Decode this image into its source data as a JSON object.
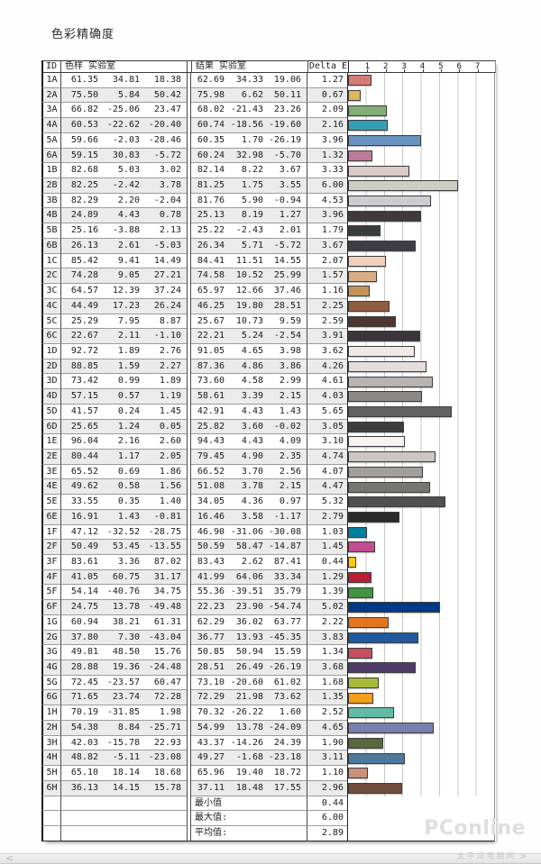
{
  "title": "色彩精确度",
  "table": {
    "headers": {
      "id": "ID",
      "sample": "色样 实验室",
      "result": "结果 实验室",
      "delta_e": "Delta E"
    },
    "scale_ticks": [
      "1",
      "2",
      "3",
      "4",
      "5",
      "6",
      "7"
    ],
    "rows": [
      {
        "id": "1A",
        "sample": [
          "61.35",
          "34.81",
          "18.38"
        ],
        "result": [
          "62.69",
          "34.33",
          "19.06"
        ],
        "de": "1.27"
      },
      {
        "id": "2A",
        "sample": [
          "75.50",
          "5.84",
          "50.42"
        ],
        "result": [
          "75.98",
          "6.62",
          "50.11"
        ],
        "de": "0.67"
      },
      {
        "id": "3A",
        "sample": [
          "66.82",
          "-25.06",
          "23.47"
        ],
        "result": [
          "68.02",
          "-21.43",
          "23.26"
        ],
        "de": "2.09"
      },
      {
        "id": "4A",
        "sample": [
          "60.53",
          "-22.62",
          "-20.40"
        ],
        "result": [
          "60.74",
          "-18.56",
          "-19.60"
        ],
        "de": "2.16"
      },
      {
        "id": "5A",
        "sample": [
          "59.66",
          "-2.03",
          "-28.46"
        ],
        "result": [
          "60.35",
          "1.70",
          "-26.19"
        ],
        "de": "3.96"
      },
      {
        "id": "6A",
        "sample": [
          "59.15",
          "30.83",
          "-5.72"
        ],
        "result": [
          "60.24",
          "32.98",
          "-5.70"
        ],
        "de": "1.32"
      },
      {
        "id": "1B",
        "sample": [
          "82.68",
          "5.03",
          "3.02"
        ],
        "result": [
          "82.14",
          "8.22",
          "3.67"
        ],
        "de": "3.33"
      },
      {
        "id": "2B",
        "sample": [
          "82.25",
          "-2.42",
          "3.78"
        ],
        "result": [
          "81.25",
          "1.75",
          "3.55"
        ],
        "de": "6.00"
      },
      {
        "id": "3B",
        "sample": [
          "82.29",
          "2.20",
          "-2.04"
        ],
        "result": [
          "81.76",
          "5.90",
          "-0.94"
        ],
        "de": "4.53"
      },
      {
        "id": "4B",
        "sample": [
          "24.89",
          "4.43",
          "0.78"
        ],
        "result": [
          "25.13",
          "8.19",
          "1.27"
        ],
        "de": "3.96"
      },
      {
        "id": "5B",
        "sample": [
          "25.16",
          "-3.88",
          "2.13"
        ],
        "result": [
          "25.22",
          "-2.43",
          "2.01"
        ],
        "de": "1.79"
      },
      {
        "id": "6B",
        "sample": [
          "26.13",
          "2.61",
          "-5.03"
        ],
        "result": [
          "26.34",
          "5.71",
          "-5.72"
        ],
        "de": "3.67"
      },
      {
        "id": "1C",
        "sample": [
          "85.42",
          "9.41",
          "14.49"
        ],
        "result": [
          "84.41",
          "11.51",
          "14.55"
        ],
        "de": "2.07"
      },
      {
        "id": "2C",
        "sample": [
          "74.28",
          "9.05",
          "27.21"
        ],
        "result": [
          "74.58",
          "10.52",
          "25.99"
        ],
        "de": "1.57"
      },
      {
        "id": "3C",
        "sample": [
          "64.57",
          "12.39",
          "37.24"
        ],
        "result": [
          "65.97",
          "12.66",
          "37.46"
        ],
        "de": "1.16"
      },
      {
        "id": "4C",
        "sample": [
          "44.49",
          "17.23",
          "26.24"
        ],
        "result": [
          "46.25",
          "19.80",
          "28.51"
        ],
        "de": "2.25"
      },
      {
        "id": "5C",
        "sample": [
          "25.29",
          "7.95",
          "8.87"
        ],
        "result": [
          "25.67",
          "10.73",
          "9.59"
        ],
        "de": "2.59"
      },
      {
        "id": "6C",
        "sample": [
          "22.67",
          "2.11",
          "-1.10"
        ],
        "result": [
          "22.21",
          "5.24",
          "-2.54"
        ],
        "de": "3.91"
      },
      {
        "id": "1D",
        "sample": [
          "92.72",
          "1.89",
          "2.76"
        ],
        "result": [
          "91.05",
          "4.65",
          "3.98"
        ],
        "de": "3.62"
      },
      {
        "id": "2D",
        "sample": [
          "88.85",
          "1.59",
          "2.27"
        ],
        "result": [
          "87.36",
          "4.86",
          "3.86"
        ],
        "de": "4.26"
      },
      {
        "id": "3D",
        "sample": [
          "73.42",
          "0.99",
          "1.89"
        ],
        "result": [
          "73.60",
          "4.58",
          "2.99"
        ],
        "de": "4.61"
      },
      {
        "id": "4D",
        "sample": [
          "57.15",
          "0.57",
          "1.19"
        ],
        "result": [
          "58.61",
          "3.39",
          "2.15"
        ],
        "de": "4.03"
      },
      {
        "id": "5D",
        "sample": [
          "41.57",
          "0.24",
          "1.45"
        ],
        "result": [
          "42.91",
          "4.43",
          "1.43"
        ],
        "de": "5.65"
      },
      {
        "id": "6D",
        "sample": [
          "25.65",
          "1.24",
          "0.05"
        ],
        "result": [
          "25.82",
          "3.60",
          "-0.02"
        ],
        "de": "3.05"
      },
      {
        "id": "1E",
        "sample": [
          "96.04",
          "2.16",
          "2.60"
        ],
        "result": [
          "94.43",
          "4.43",
          "4.09"
        ],
        "de": "3.10"
      },
      {
        "id": "2E",
        "sample": [
          "80.44",
          "1.17",
          "2.05"
        ],
        "result": [
          "79.45",
          "4.90",
          "2.35"
        ],
        "de": "4.74"
      },
      {
        "id": "3E",
        "sample": [
          "65.52",
          "0.69",
          "1.86"
        ],
        "result": [
          "66.52",
          "3.70",
          "2.56"
        ],
        "de": "4.07"
      },
      {
        "id": "4E",
        "sample": [
          "49.62",
          "0.58",
          "1.56"
        ],
        "result": [
          "51.08",
          "3.78",
          "2.15"
        ],
        "de": "4.47"
      },
      {
        "id": "5E",
        "sample": [
          "33.55",
          "0.35",
          "1.40"
        ],
        "result": [
          "34.05",
          "4.36",
          "0.97"
        ],
        "de": "5.32"
      },
      {
        "id": "6E",
        "sample": [
          "16.91",
          "1.43",
          "-0.81"
        ],
        "result": [
          "16.46",
          "3.58",
          "-1.17"
        ],
        "de": "2.79"
      },
      {
        "id": "1F",
        "sample": [
          "47.12",
          "-32.52",
          "-28.75"
        ],
        "result": [
          "46.90",
          "-31.06",
          "-30.08"
        ],
        "de": "1.03"
      },
      {
        "id": "2F",
        "sample": [
          "50.49",
          "53.45",
          "-13.55"
        ],
        "result": [
          "50.59",
          "58.47",
          "-14.87"
        ],
        "de": "1.45"
      },
      {
        "id": "3F",
        "sample": [
          "83.61",
          "3.36",
          "87.02"
        ],
        "result": [
          "83.43",
          "2.62",
          "87.41"
        ],
        "de": "0.44"
      },
      {
        "id": "4F",
        "sample": [
          "41.05",
          "60.75",
          "31.17"
        ],
        "result": [
          "41.99",
          "64.06",
          "33.34"
        ],
        "de": "1.29"
      },
      {
        "id": "5F",
        "sample": [
          "54.14",
          "-40.76",
          "34.75"
        ],
        "result": [
          "55.36",
          "-39.51",
          "35.79"
        ],
        "de": "1.39"
      },
      {
        "id": "6F",
        "sample": [
          "24.75",
          "13.78",
          "-49.48"
        ],
        "result": [
          "22.23",
          "23.90",
          "-54.74"
        ],
        "de": "5.02"
      },
      {
        "id": "1G",
        "sample": [
          "60.94",
          "38.21",
          "61.31"
        ],
        "result": [
          "62.29",
          "36.02",
          "63.77"
        ],
        "de": "2.22"
      },
      {
        "id": "2G",
        "sample": [
          "37.80",
          "7.30",
          "-43.04"
        ],
        "result": [
          "36.77",
          "13.93",
          "-45.35"
        ],
        "de": "3.83"
      },
      {
        "id": "3G",
        "sample": [
          "49.81",
          "48.50",
          "15.76"
        ],
        "result": [
          "50.85",
          "50.94",
          "15.59"
        ],
        "de": "1.34"
      },
      {
        "id": "4G",
        "sample": [
          "28.88",
          "19.36",
          "-24.48"
        ],
        "result": [
          "28.51",
          "26.49",
          "-26.19"
        ],
        "de": "3.68"
      },
      {
        "id": "5G",
        "sample": [
          "72.45",
          "-23.57",
          "60.47"
        ],
        "result": [
          "73.10",
          "-20.60",
          "61.02"
        ],
        "de": "1.68"
      },
      {
        "id": "6G",
        "sample": [
          "71.65",
          "23.74",
          "72.28"
        ],
        "result": [
          "72.29",
          "21.98",
          "73.62"
        ],
        "de": "1.35"
      },
      {
        "id": "1H",
        "sample": [
          "70.19",
          "-31.85",
          "1.98"
        ],
        "result": [
          "70.32",
          "-26.22",
          "1.60"
        ],
        "de": "2.52"
      },
      {
        "id": "2H",
        "sample": [
          "54.38",
          "8.84",
          "-25.71"
        ],
        "result": [
          "54.99",
          "13.78",
          "-24.09"
        ],
        "de": "4.65"
      },
      {
        "id": "3H",
        "sample": [
          "42.03",
          "-15.78",
          "22.93"
        ],
        "result": [
          "43.37",
          "-14.26",
          "24.39"
        ],
        "de": "1.90"
      },
      {
        "id": "4H",
        "sample": [
          "48.82",
          "-5.11",
          "-23.08"
        ],
        "result": [
          "49.27",
          "-1.68",
          "-23.18"
        ],
        "de": "3.11"
      },
      {
        "id": "5H",
        "sample": [
          "65.10",
          "18.14",
          "18.68"
        ],
        "result": [
          "65.96",
          "19.40",
          "18.72"
        ],
        "de": "1.10"
      },
      {
        "id": "6H",
        "sample": [
          "36.13",
          "14.15",
          "15.78"
        ],
        "result": [
          "37.11",
          "18.48",
          "17.55"
        ],
        "de": "2.96"
      }
    ],
    "summary": [
      {
        "label": "最小值",
        "value": "0.44"
      },
      {
        "label": "最大值:",
        "value": "6.00"
      },
      {
        "label": "平均值:",
        "value": "2.89"
      }
    ]
  },
  "watermark": {
    "brand": "PConline",
    "sub": "太平洋电脑网"
  },
  "carousel": {
    "prev_icon": "<",
    "next_icon": ">"
  },
  "chart_data": {
    "type": "bar",
    "orientation": "horizontal",
    "title": "色彩精确度",
    "xlabel": "Delta E",
    "xlim": [
      0,
      8
    ],
    "x_ticks": [
      1,
      2,
      3,
      4,
      5,
      6,
      7
    ],
    "grid": true,
    "note": "Each bar is filled with the patch color derived from its sample Lab value",
    "categories": [
      "1A",
      "2A",
      "3A",
      "4A",
      "5A",
      "6A",
      "1B",
      "2B",
      "3B",
      "4B",
      "5B",
      "6B",
      "1C",
      "2C",
      "3C",
      "4C",
      "5C",
      "6C",
      "1D",
      "2D",
      "3D",
      "4D",
      "5D",
      "6D",
      "1E",
      "2E",
      "3E",
      "4E",
      "5E",
      "6E",
      "1F",
      "2F",
      "3F",
      "4F",
      "5F",
      "6F",
      "1G",
      "2G",
      "3G",
      "4G",
      "5G",
      "6G",
      "1H",
      "2H",
      "3H",
      "4H",
      "5H",
      "6H"
    ],
    "values": [
      1.27,
      0.67,
      2.09,
      2.16,
      3.96,
      1.32,
      3.33,
      6.0,
      4.53,
      3.96,
      1.79,
      3.67,
      2.07,
      1.57,
      1.16,
      2.25,
      2.59,
      3.91,
      3.62,
      4.26,
      4.61,
      4.03,
      5.65,
      3.05,
      3.1,
      4.74,
      4.07,
      4.47,
      5.32,
      2.79,
      1.03,
      1.45,
      0.44,
      1.29,
      1.39,
      5.02,
      2.22,
      3.83,
      1.34,
      3.68,
      1.68,
      1.35,
      2.52,
      4.65,
      1.9,
      3.11,
      1.1,
      2.96
    ],
    "summary": {
      "min": 0.44,
      "max": 6.0,
      "mean": 2.89
    }
  }
}
